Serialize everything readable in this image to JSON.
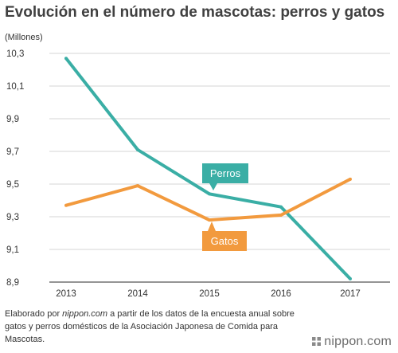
{
  "chart_data": {
    "type": "line",
    "title": "Evolución en el número de mascotas: perros y gatos",
    "ylabel": "(Millones)",
    "xlabel": "",
    "categories": [
      "2013",
      "2014",
      "2015",
      "2016",
      "2017"
    ],
    "yticks": [
      "10,3",
      "10,1",
      "9,9",
      "9,7",
      "9,5",
      "9,3",
      "9,1",
      "8,9"
    ],
    "ylim": [
      8.9,
      10.3
    ],
    "grid": true,
    "legend": "inline-labels",
    "series": [
      {
        "name": "Perros",
        "color": "#3aaea5",
        "values": [
          10.27,
          9.71,
          9.44,
          9.36,
          8.92
        ]
      },
      {
        "name": "Gatos",
        "color": "#f29a3e",
        "values": [
          9.37,
          9.49,
          9.28,
          9.31,
          9.53
        ]
      }
    ]
  },
  "source": {
    "prefix": "Elaborado por ",
    "site": "nippon.com",
    "suffix": " a partir de los datos de la encuesta anual sobre gatos y perros domésticos de la Asociación Japonesa de Comida para Mascotas."
  },
  "brand": {
    "text": "nippon.com",
    "icon": "nippon-logo-icon"
  }
}
